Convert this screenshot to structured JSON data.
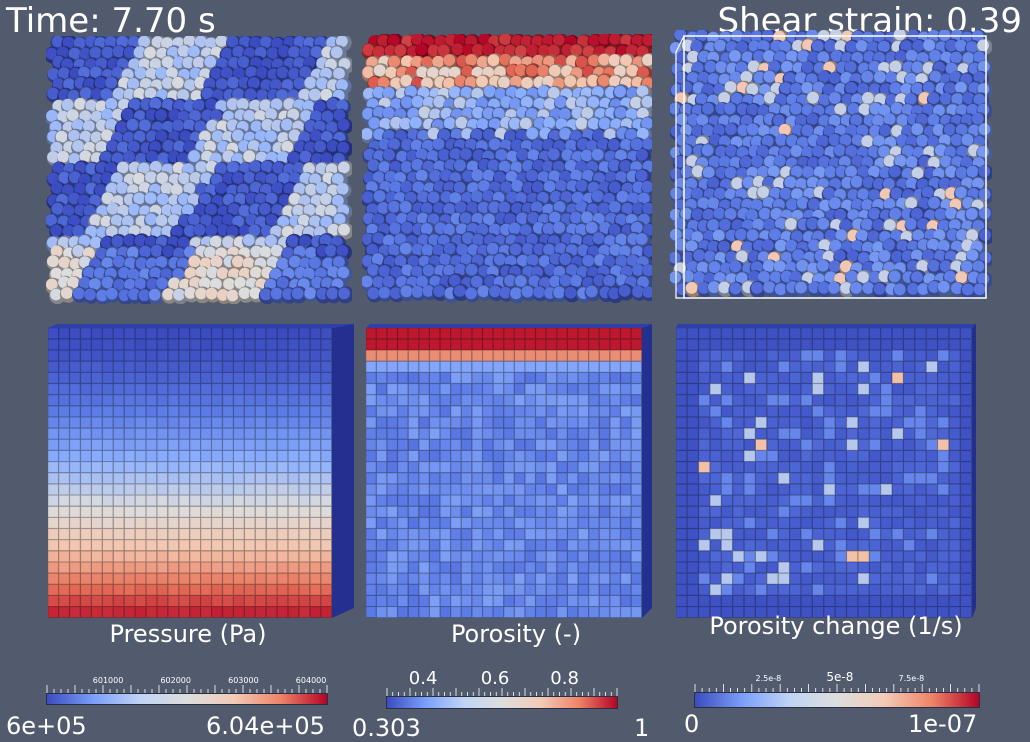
{
  "header": {
    "time_text": "Time: 7.70 s",
    "strain_text": "Shear strain: 0.39"
  },
  "panels": {
    "pressure": {
      "caption": "Pressure (Pa)"
    },
    "porosity": {
      "caption": "Porosity (-)"
    },
    "porosity_change": {
      "caption": "Porosity change (1/s)"
    }
  },
  "colorbars": {
    "pressure": {
      "min_text": "6e+05",
      "max_text": "6.04e+05",
      "tick_labels": [
        "601000",
        "602000",
        "603000",
        "604000"
      ]
    },
    "porosity": {
      "min_text": "0.303",
      "max_text": "1",
      "tick_labels": [
        "0.4",
        "0.6",
        "0.8"
      ]
    },
    "porosity_change": {
      "min_text": "0",
      "max_text": "1e-07",
      "tick_labels": [
        "2.5e-8",
        "5e-8",
        "7.5e-8"
      ]
    }
  },
  "colors": {
    "background": "#525a6e",
    "cold": "#3b4cc0",
    "neutral": "#dddddd",
    "hot": "#b40426"
  }
}
